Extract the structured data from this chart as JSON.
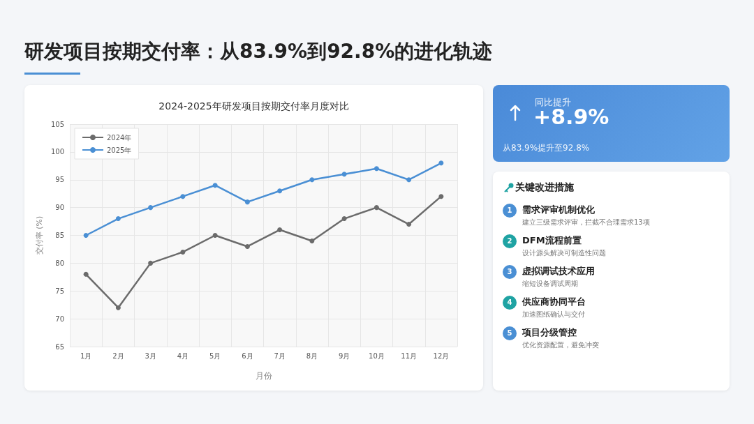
{
  "chart_data": {
    "type": "line",
    "title": "研发项目按期交付率：从83.9%到92.8%的进化轨迹",
    "subtitle": "2024-2025年研发项目按期交付率月度对比",
    "xlabel": "月份",
    "ylabel": "交付率 (%)",
    "categories": [
      "1月",
      "2月",
      "3月",
      "4月",
      "5月",
      "6月",
      "7月",
      "8月",
      "9月",
      "10月",
      "11月",
      "12月"
    ],
    "series": [
      {
        "name": "2024年",
        "color": "#6b6b6b",
        "values": [
          78,
          72,
          80,
          82,
          85,
          83,
          86,
          84,
          88,
          90,
          87,
          92
        ]
      },
      {
        "name": "2025年",
        "color": "#4a8fd4",
        "values": [
          85,
          88,
          90,
          92,
          94,
          91,
          93,
          95,
          96,
          97,
          95,
          98
        ]
      }
    ],
    "ylim": [
      65,
      105
    ],
    "yticks": [
      65,
      70,
      75,
      80,
      85,
      90,
      95,
      100,
      105
    ],
    "grid": true,
    "legend": "top left",
    "marker": "circle",
    "line_style": "solid",
    "annotations": [
      "同比提升",
      "+8.9%",
      "从83.9%提升至92.8%",
      "关键改进措施",
      "1",
      "需求评审机制优化",
      "建立三级需求评审，拦截不合理需求13项",
      "2",
      "DFM流程前置",
      "设计源头解决可制造性问题",
      "3",
      "虚拟调试技术应用",
      "缩短设备调试周期",
      "4",
      "供应商协同平台",
      "加速图纸确认与交付",
      "5",
      "项目分级管控",
      "优化资源配置，避免冲突"
    ]
  }
}
